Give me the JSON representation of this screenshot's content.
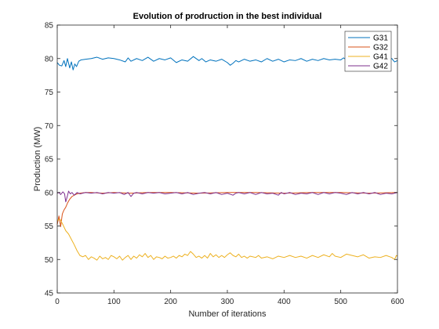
{
  "chart_data": {
    "type": "line",
    "title": "Evolution of prodruction in the best individual",
    "xlabel": "Number of iterations",
    "ylabel": "Production (MW)",
    "xlim": [
      0,
      600
    ],
    "ylim": [
      45,
      85
    ],
    "xticks": [
      0,
      100,
      200,
      300,
      400,
      500,
      600
    ],
    "yticks": [
      45,
      50,
      55,
      60,
      65,
      70,
      75,
      80,
      85
    ],
    "grid": false,
    "legend_position": "top-right",
    "series": [
      {
        "name": "G31",
        "color": "#0072BD",
        "points": [
          [
            0,
            79.4
          ],
          [
            4,
            79.0
          ],
          [
            8,
            78.9
          ],
          [
            12,
            79.7
          ],
          [
            15,
            78.8
          ],
          [
            18,
            80.0
          ],
          [
            22,
            78.6
          ],
          [
            25,
            79.5
          ],
          [
            28,
            78.3
          ],
          [
            31,
            79.2
          ],
          [
            34,
            78.8
          ],
          [
            38,
            79.6
          ],
          [
            42,
            79.8
          ],
          [
            50,
            79.9
          ],
          [
            60,
            80.0
          ],
          [
            70,
            80.2
          ],
          [
            80,
            79.9
          ],
          [
            90,
            80.1
          ],
          [
            100,
            80.0
          ],
          [
            110,
            79.8
          ],
          [
            120,
            79.5
          ],
          [
            125,
            80.1
          ],
          [
            130,
            79.6
          ],
          [
            140,
            80.0
          ],
          [
            150,
            79.7
          ],
          [
            160,
            80.2
          ],
          [
            170,
            79.6
          ],
          [
            180,
            80.0
          ],
          [
            190,
            79.8
          ],
          [
            200,
            80.1
          ],
          [
            210,
            79.4
          ],
          [
            220,
            79.8
          ],
          [
            230,
            79.6
          ],
          [
            240,
            80.3
          ],
          [
            250,
            79.7
          ],
          [
            255,
            80.0
          ],
          [
            262,
            79.5
          ],
          [
            270,
            79.8
          ],
          [
            280,
            79.6
          ],
          [
            290,
            79.9
          ],
          [
            300,
            79.4
          ],
          [
            305,
            79.0
          ],
          [
            310,
            79.3
          ],
          [
            315,
            79.7
          ],
          [
            320,
            79.5
          ],
          [
            330,
            79.9
          ],
          [
            340,
            79.6
          ],
          [
            350,
            79.8
          ],
          [
            360,
            79.5
          ],
          [
            370,
            80.0
          ],
          [
            380,
            79.6
          ],
          [
            390,
            79.9
          ],
          [
            400,
            79.5
          ],
          [
            410,
            79.8
          ],
          [
            420,
            79.7
          ],
          [
            430,
            80.0
          ],
          [
            440,
            79.6
          ],
          [
            450,
            79.9
          ],
          [
            460,
            79.7
          ],
          [
            470,
            80.0
          ],
          [
            480,
            79.8
          ],
          [
            490,
            79.9
          ],
          [
            500,
            79.8
          ],
          [
            505,
            80.1
          ],
          [
            510,
            79.8
          ],
          [
            520,
            79.9
          ],
          [
            530,
            80.1
          ],
          [
            540,
            79.9
          ],
          [
            550,
            80.2
          ],
          [
            560,
            80.0
          ],
          [
            570,
            79.7
          ],
          [
            580,
            80.1
          ],
          [
            590,
            80.0
          ],
          [
            595,
            79.5
          ],
          [
            600,
            79.7
          ]
        ]
      },
      {
        "name": "G32",
        "color": "#D95319",
        "points": [
          [
            0,
            55.2
          ],
          [
            3,
            56.5
          ],
          [
            6,
            54.9
          ],
          [
            9,
            56.8
          ],
          [
            12,
            57.4
          ],
          [
            15,
            57.8
          ],
          [
            18,
            58.4
          ],
          [
            22,
            59.0
          ],
          [
            26,
            59.4
          ],
          [
            30,
            59.6
          ],
          [
            35,
            59.8
          ],
          [
            40,
            59.9
          ],
          [
            50,
            60.0
          ],
          [
            60,
            60.0
          ],
          [
            80,
            59.9
          ],
          [
            100,
            60.0
          ],
          [
            130,
            59.9
          ],
          [
            160,
            60.0
          ],
          [
            200,
            60.0
          ],
          [
            250,
            59.9
          ],
          [
            300,
            60.0
          ],
          [
            350,
            60.0
          ],
          [
            400,
            59.9
          ],
          [
            450,
            60.0
          ],
          [
            500,
            60.0
          ],
          [
            550,
            59.9
          ],
          [
            600,
            60.0
          ]
        ]
      },
      {
        "name": "G41",
        "color": "#EDB120",
        "points": [
          [
            0,
            55.8
          ],
          [
            5,
            56.0
          ],
          [
            10,
            55.2
          ],
          [
            15,
            54.3
          ],
          [
            20,
            53.8
          ],
          [
            25,
            53.0
          ],
          [
            30,
            52.2
          ],
          [
            35,
            51.3
          ],
          [
            40,
            50.6
          ],
          [
            45,
            50.4
          ],
          [
            50,
            50.6
          ],
          [
            55,
            50.0
          ],
          [
            60,
            50.4
          ],
          [
            65,
            50.2
          ],
          [
            70,
            49.9
          ],
          [
            75,
            50.5
          ],
          [
            80,
            50.1
          ],
          [
            85,
            50.3
          ],
          [
            90,
            50.0
          ],
          [
            95,
            50.6
          ],
          [
            100,
            50.4
          ],
          [
            105,
            50.1
          ],
          [
            110,
            50.5
          ],
          [
            115,
            49.9
          ],
          [
            120,
            50.3
          ],
          [
            125,
            50.6
          ],
          [
            130,
            50.0
          ],
          [
            135,
            50.5
          ],
          [
            140,
            50.2
          ],
          [
            145,
            50.7
          ],
          [
            150,
            50.4
          ],
          [
            155,
            50.9
          ],
          [
            160,
            50.3
          ],
          [
            165,
            50.6
          ],
          [
            170,
            50.0
          ],
          [
            175,
            50.4
          ],
          [
            180,
            50.3
          ],
          [
            185,
            50.1
          ],
          [
            190,
            50.5
          ],
          [
            195,
            50.2
          ],
          [
            200,
            50.3
          ],
          [
            205,
            50.5
          ],
          [
            210,
            50.2
          ],
          [
            215,
            50.6
          ],
          [
            220,
            50.4
          ],
          [
            225,
            50.8
          ],
          [
            230,
            50.6
          ],
          [
            235,
            51.2
          ],
          [
            240,
            50.8
          ],
          [
            245,
            50.3
          ],
          [
            250,
            50.5
          ],
          [
            255,
            50.2
          ],
          [
            260,
            50.6
          ],
          [
            265,
            50.2
          ],
          [
            270,
            50.9
          ],
          [
            275,
            50.4
          ],
          [
            280,
            50.7
          ],
          [
            285,
            50.3
          ],
          [
            290,
            50.6
          ],
          [
            295,
            50.3
          ],
          [
            300,
            50.7
          ],
          [
            305,
            51.0
          ],
          [
            310,
            50.6
          ],
          [
            315,
            50.4
          ],
          [
            320,
            50.8
          ],
          [
            325,
            50.3
          ],
          [
            330,
            50.5
          ],
          [
            335,
            50.2
          ],
          [
            340,
            50.5
          ],
          [
            350,
            50.3
          ],
          [
            355,
            50.6
          ],
          [
            360,
            50.2
          ],
          [
            370,
            50.4
          ],
          [
            380,
            50.1
          ],
          [
            390,
            50.5
          ],
          [
            400,
            50.3
          ],
          [
            410,
            50.6
          ],
          [
            420,
            50.3
          ],
          [
            430,
            50.5
          ],
          [
            440,
            50.2
          ],
          [
            450,
            50.6
          ],
          [
            460,
            50.3
          ],
          [
            470,
            50.7
          ],
          [
            480,
            50.4
          ],
          [
            485,
            50.9
          ],
          [
            490,
            50.5
          ],
          [
            500,
            50.3
          ],
          [
            510,
            50.8
          ],
          [
            520,
            50.6
          ],
          [
            530,
            50.4
          ],
          [
            540,
            50.7
          ],
          [
            550,
            50.2
          ],
          [
            560,
            50.4
          ],
          [
            570,
            50.3
          ],
          [
            580,
            50.6
          ],
          [
            590,
            50.3
          ],
          [
            595,
            50.0
          ],
          [
            598,
            50.6
          ],
          [
            600,
            50.5
          ]
        ]
      },
      {
        "name": "G42",
        "color": "#7E2F8E",
        "points": [
          [
            0,
            59.9
          ],
          [
            3,
            60.0
          ],
          [
            6,
            59.7
          ],
          [
            10,
            60.1
          ],
          [
            13,
            59.8
          ],
          [
            15,
            58.6
          ],
          [
            18,
            59.5
          ],
          [
            20,
            60.2
          ],
          [
            23,
            59.8
          ],
          [
            26,
            60.0
          ],
          [
            30,
            59.6
          ],
          [
            35,
            60.0
          ],
          [
            40,
            59.8
          ],
          [
            50,
            60.0
          ],
          [
            60,
            59.9
          ],
          [
            70,
            60.0
          ],
          [
            80,
            59.8
          ],
          [
            90,
            60.0
          ],
          [
            100,
            59.9
          ],
          [
            110,
            60.0
          ],
          [
            118,
            59.7
          ],
          [
            125,
            60.0
          ],
          [
            130,
            59.4
          ],
          [
            135,
            59.9
          ],
          [
            140,
            60.0
          ],
          [
            150,
            59.8
          ],
          [
            160,
            60.0
          ],
          [
            170,
            59.9
          ],
          [
            180,
            60.0
          ],
          [
            190,
            59.8
          ],
          [
            200,
            59.9
          ],
          [
            210,
            60.0
          ],
          [
            220,
            59.8
          ],
          [
            230,
            60.0
          ],
          [
            240,
            59.7
          ],
          [
            250,
            59.9
          ],
          [
            260,
            60.0
          ],
          [
            270,
            59.8
          ],
          [
            280,
            60.0
          ],
          [
            290,
            59.7
          ],
          [
            300,
            59.9
          ],
          [
            310,
            59.6
          ],
          [
            315,
            59.9
          ],
          [
            320,
            60.0
          ],
          [
            330,
            59.8
          ],
          [
            340,
            60.0
          ],
          [
            350,
            59.7
          ],
          [
            360,
            60.0
          ],
          [
            370,
            59.8
          ],
          [
            380,
            59.9
          ],
          [
            390,
            59.6
          ],
          [
            395,
            60.0
          ],
          [
            400,
            59.8
          ],
          [
            410,
            60.0
          ],
          [
            420,
            59.7
          ],
          [
            430,
            59.9
          ],
          [
            440,
            59.8
          ],
          [
            450,
            60.0
          ],
          [
            460,
            59.7
          ],
          [
            470,
            60.0
          ],
          [
            480,
            59.8
          ],
          [
            490,
            60.0
          ],
          [
            500,
            59.9
          ],
          [
            510,
            59.7
          ],
          [
            520,
            60.0
          ],
          [
            530,
            59.8
          ],
          [
            540,
            60.0
          ],
          [
            550,
            59.8
          ],
          [
            560,
            60.0
          ],
          [
            570,
            59.7
          ],
          [
            580,
            59.9
          ],
          [
            590,
            59.8
          ],
          [
            600,
            60.0
          ]
        ]
      }
    ]
  }
}
